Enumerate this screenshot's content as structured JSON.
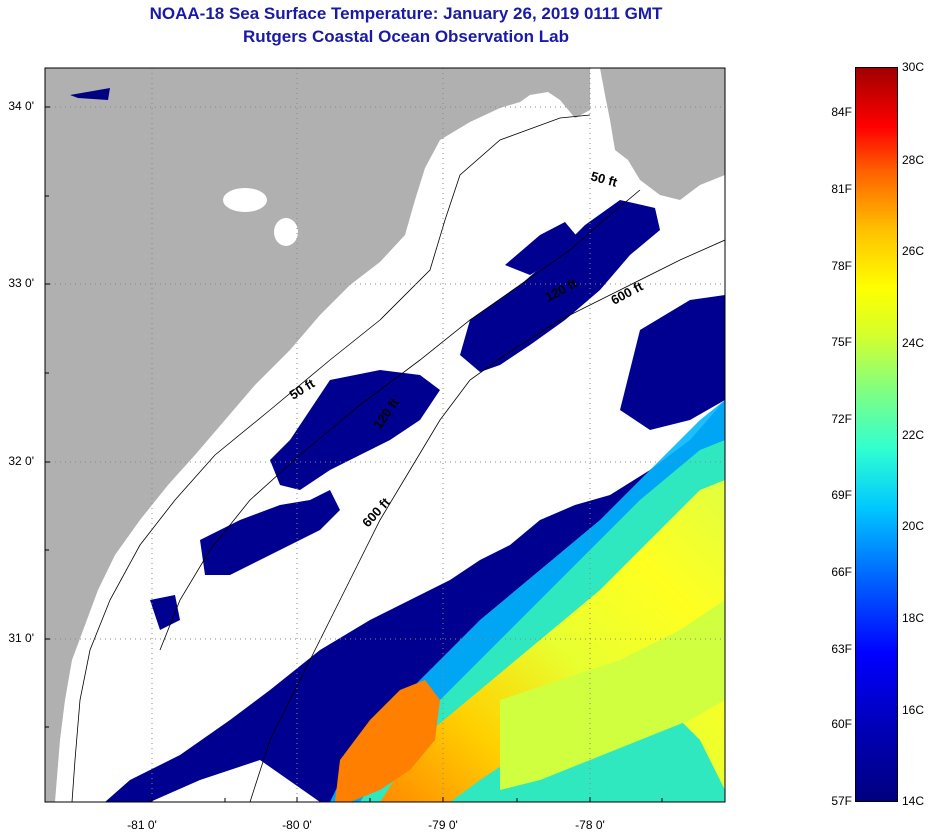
{
  "title": {
    "line1": "NOAA-18 Sea Surface Temperature:  January 26, 2019 0111 GMT",
    "line2": "Rutgers Coastal Ocean Observation Lab"
  },
  "map": {
    "lat_labels": [
      "34 0'",
      "33 0'",
      "32 0'",
      "31 0'"
    ],
    "lon_labels": [
      "-81 0'",
      "-80 0'",
      "-79 0'",
      "-78 0'"
    ],
    "isobath_labels": [
      "50 ft",
      "120 ft",
      "600 ft",
      "50 ft",
      "120 ft",
      "600 ft"
    ],
    "colors": {
      "land": "#b0b0b0",
      "no_data": "#ffffff",
      "title": "#1a1aa6"
    }
  },
  "colorbar": {
    "fahrenheit_labels": [
      "84F",
      "81F",
      "78F",
      "75F",
      "72F",
      "69F",
      "66F",
      "63F",
      "60F",
      "57F"
    ],
    "celsius_labels": [
      "30C",
      "28C",
      "26C",
      "24C",
      "22C",
      "20C",
      "18C",
      "16C",
      "14C"
    ],
    "range_celsius": [
      14,
      30
    ]
  }
}
